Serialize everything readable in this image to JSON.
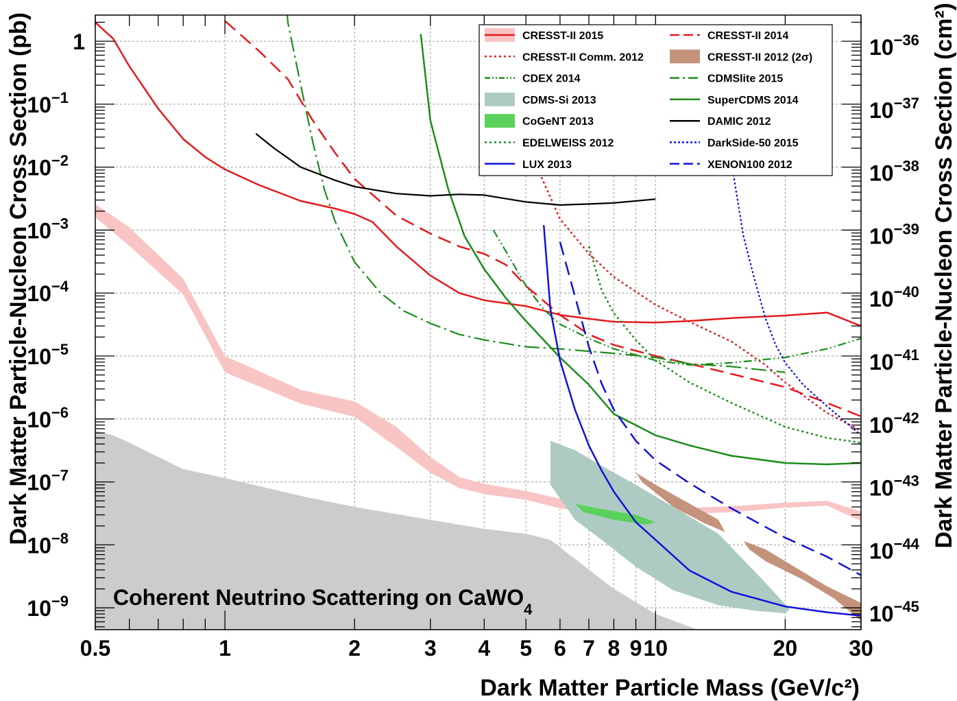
{
  "chart_data": {
    "type": "line",
    "xlabel": "Dark Matter Particle Mass (GeV/c²)",
    "ylabel_left": "Dark Matter Particle-Nucleon Cross Section (pb)",
    "ylabel_right": "Dark Matter Particle-Nucleon Cross Section (cm²)",
    "x_scale": "log",
    "y_scale": "log",
    "xlim": [
      0.5,
      30
    ],
    "ylim_pb": [
      4.5e-10,
      2.6
    ],
    "right_axis_factor": 1e-36,
    "grid": true,
    "legend_position": "top-right",
    "x_ticks": [
      {
        "value": 0.5,
        "label": "0.5"
      },
      {
        "value": 1,
        "label": "1"
      },
      {
        "value": 2,
        "label": "2"
      },
      {
        "value": 3,
        "label": "3"
      },
      {
        "value": 4,
        "label": "4"
      },
      {
        "value": 5,
        "label": "5"
      },
      {
        "value": 6,
        "label": "6"
      },
      {
        "value": 7,
        "label": "7"
      },
      {
        "value": 8,
        "label": "8"
      },
      {
        "value": 9,
        "label": "9"
      },
      {
        "value": 10,
        "label": "10"
      },
      {
        "value": 20,
        "label": "20"
      },
      {
        "value": 30,
        "label": "30"
      }
    ],
    "y_ticks_left": [
      {
        "value": 1,
        "base": "1",
        "exp": ""
      },
      {
        "value": 0.1,
        "base": "10",
        "exp": "−1"
      },
      {
        "value": 0.01,
        "base": "10",
        "exp": "−2"
      },
      {
        "value": 0.001,
        "base": "10",
        "exp": "−3"
      },
      {
        "value": 0.0001,
        "base": "10",
        "exp": "−4"
      },
      {
        "value": 1e-05,
        "base": "10",
        "exp": "−5"
      },
      {
        "value": 1e-06,
        "base": "10",
        "exp": "−6"
      },
      {
        "value": 1e-07,
        "base": "10",
        "exp": "−7"
      },
      {
        "value": 1e-08,
        "base": "10",
        "exp": "−8"
      },
      {
        "value": 1e-09,
        "base": "10",
        "exp": "−9"
      }
    ],
    "y_ticks_right": [
      {
        "value_pb": 1,
        "base": "10",
        "exp": "−36"
      },
      {
        "value_pb": 0.1,
        "base": "10",
        "exp": "−37"
      },
      {
        "value_pb": 0.01,
        "base": "10",
        "exp": "−38"
      },
      {
        "value_pb": 0.001,
        "base": "10",
        "exp": "−39"
      },
      {
        "value_pb": 0.0001,
        "base": "10",
        "exp": "−40"
      },
      {
        "value_pb": 1e-05,
        "base": "10",
        "exp": "−41"
      },
      {
        "value_pb": 1e-06,
        "base": "10",
        "exp": "−42"
      },
      {
        "value_pb": 1e-07,
        "base": "10",
        "exp": "−43"
      },
      {
        "value_pb": 1e-08,
        "base": "10",
        "exp": "−44"
      },
      {
        "value_pb": 1e-09,
        "base": "10",
        "exp": "−45"
      }
    ],
    "annotation": {
      "text": "Coherent Neutrino Scattering on CaWO",
      "subscript": "4"
    },
    "neutrino_floor": {
      "color": "#cccccc",
      "x": [
        0.5,
        0.55,
        0.6,
        0.7,
        0.8,
        1.0,
        1.5,
        2.0,
        3.0,
        4.0,
        5.0,
        5.7,
        6.5,
        8.0,
        10.0,
        12.0,
        12.5
      ],
      "y": [
        6.5e-07,
        5.5e-07,
        4.2e-07,
        2.5e-07,
        1.6e-07,
        1.15e-07,
        6e-08,
        4e-08,
        2.5e-08,
        1.8e-08,
        1.5e-08,
        1.2e-08,
        6e-09,
        2e-09,
        8e-10,
        5e-10,
        4.5e-10
      ]
    },
    "bands": [
      {
        "name": "CRESST-II 2015",
        "color": "#f8c4c4",
        "x": [
          0.5,
          0.6,
          0.8,
          1.0,
          1.5,
          2.0,
          2.5,
          3.0,
          3.5,
          4.0,
          5.0,
          6.0,
          8.0,
          10.0,
          15.0,
          20.0,
          25.0,
          30.0
        ],
        "lower": [
          0.0016,
          0.00056,
          9.5e-05,
          5.5e-06,
          1.75e-06,
          1.08e-06,
          3.6e-07,
          1.4e-07,
          8e-08,
          6.4e-08,
          5.2e-08,
          3.8e-08,
          3e-08,
          3e-08,
          3.3e-08,
          3.9e-08,
          4.2e-08,
          2.4e-08
        ],
        "upper": [
          0.0026,
          0.0011,
          0.00017,
          1e-05,
          2.9e-06,
          1.9e-06,
          7.5e-07,
          2.5e-07,
          1.2e-07,
          9.3e-08,
          7.2e-08,
          5.4e-08,
          3.8e-08,
          3.7e-08,
          4.1e-08,
          4.7e-08,
          5e-08,
          3.4e-08
        ]
      },
      {
        "name": "CDMS-Si 2013",
        "color": "#aecbc3",
        "x": [
          5.7,
          6.5,
          7.5,
          9.0,
          11.0,
          14.0,
          18.0,
          20.5,
          20.0,
          17.0,
          14.0,
          11.0,
          9.0,
          7.5,
          6.5,
          5.7
        ],
        "y": [
          4.5e-07,
          3.2e-07,
          1.8e-07,
          9e-08,
          4e-08,
          1.5e-08,
          2.5e-09,
          9.5e-10,
          8.2e-10,
          9e-10,
          1.1e-09,
          1.9e-09,
          4.5e-09,
          1.2e-08,
          2.5e-08,
          9e-08
        ]
      },
      {
        "name": "CoGeNT 2013",
        "color": "#5ad15a",
        "x": [
          6.5,
          7.5,
          9.0,
          10.0,
          9.5,
          8.0,
          6.8
        ],
        "y": [
          4.5e-08,
          3.7e-08,
          3e-08,
          2.3e-08,
          2.1e-08,
          2.5e-08,
          3.3e-08
        ]
      },
      {
        "name": "CRESST-II 2012 (2σ)",
        "color": "#c4937c",
        "x": [
          9.0,
          10.0,
          12.0,
          14.0,
          14.5,
          13.0,
          11.0,
          9.3
        ],
        "y": [
          1.4e-07,
          9e-08,
          4.5e-08,
          2.5e-08,
          1.6e-08,
          2.2e-08,
          4e-08,
          1e-07
        ]
      },
      {
        "name": "CRESST-II 2012 (2σ)",
        "color": "#c4937c",
        "x": [
          16.0,
          18.0,
          21.0,
          25.0,
          30.0,
          30.0,
          26.0,
          22.0,
          18.0,
          16.5
        ],
        "y": [
          1.15e-08,
          8.5e-09,
          4.5e-09,
          2.2e-09,
          1.2e-09,
          6.2e-10,
          1.4e-09,
          2.8e-09,
          5.5e-09,
          8.5e-09
        ]
      }
    ],
    "series": [
      {
        "name": "CRESST-II 2015",
        "color": "#e41a1c",
        "dash": "",
        "width": 2.5,
        "x": [
          0.5,
          0.55,
          0.6,
          0.7,
          0.8,
          0.9,
          1.0,
          1.2,
          1.5,
          1.8,
          2.0,
          2.2,
          2.5,
          3.0,
          3.5,
          4.0,
          5.0,
          6.0,
          7.0,
          8.0,
          10.0,
          12.0,
          15.0,
          20.0,
          25.0,
          30.0
        ],
        "y": [
          2.0,
          1.1,
          0.4,
          0.085,
          0.028,
          0.0145,
          0.0092,
          0.0052,
          0.0029,
          0.0022,
          0.0018,
          0.00135,
          0.00055,
          0.00019,
          0.0001,
          7.7e-05,
          6.2e-05,
          4.5e-05,
          3.9e-05,
          3.5e-05,
          3.4e-05,
          3.6e-05,
          4e-05,
          4.4e-05,
          4.9e-05,
          3e-05
        ]
      },
      {
        "name": "CRESST-II 2014",
        "color": "#e41a1c",
        "dash": "20,10",
        "width": 2.5,
        "x": [
          1.0,
          1.2,
          1.4,
          1.6,
          1.8,
          2.0,
          2.5,
          3.0,
          3.5,
          4.0,
          4.5,
          5.0,
          6.0,
          7.0,
          8.0,
          10.0,
          12.0,
          15.0,
          20.0,
          25.0,
          30.0
        ],
        "y": [
          2.1,
          0.7,
          0.25,
          0.055,
          0.017,
          0.0065,
          0.0017,
          0.00088,
          0.00055,
          0.00042,
          0.00028,
          0.00013,
          4.5e-05,
          2.2e-05,
          1.5e-05,
          1e-05,
          7.5e-06,
          5.2e-06,
          3.2e-06,
          1.8e-06,
          1.1e-06
        ]
      },
      {
        "name": "CRESST-II Comm. 2012",
        "color": "#e41a1c",
        "dash": "3,4",
        "width": 2.5,
        "x": [
          4.5,
          5.0,
          6.0,
          7.0,
          8.0,
          10.0,
          12.0,
          15.0,
          18.0,
          20.0,
          25.0,
          30.0
        ],
        "y": [
          0.15,
          0.025,
          0.0015,
          0.00042,
          0.00018,
          6.5e-05,
          3.5e-05,
          1.7e-05,
          7.2e-06,
          3.8e-06,
          1.25e-06,
          6.5e-07
        ]
      },
      {
        "name": "CDEX 2014",
        "color": "#1b8c1b",
        "dash": "12,4,2,4,2,4",
        "width": 2.2,
        "x": [
          4.2,
          4.6,
          5.0,
          5.5,
          6.0,
          7.0,
          8.0,
          10.0,
          12.0,
          15.0,
          20.0,
          25.0,
          30.0
        ],
        "y": [
          0.001,
          0.00035,
          0.00013,
          5.5e-05,
          3.2e-05,
          1.9e-05,
          1.3e-05,
          8.5e-06,
          7.2e-06,
          7.8e-06,
          9.5e-06,
          1.3e-05,
          1.9e-05
        ]
      },
      {
        "name": "CDMSlite 2015",
        "color": "#1b8c1b",
        "dash": "22,6,3,6",
        "width": 2.2,
        "x": [
          1.32,
          1.4,
          1.5,
          1.6,
          1.7,
          1.8,
          2.0,
          2.3,
          2.6,
          3.0,
          3.5,
          4.0,
          5.0,
          6.0,
          8.0,
          10.0,
          12.0,
          15.0,
          20.0
        ],
        "y": [
          300,
          2.0,
          0.2,
          0.025,
          0.0045,
          0.0014,
          0.00031,
          0.0001,
          5.2e-05,
          3.3e-05,
          2.2e-05,
          1.8e-05,
          1.4e-05,
          1.3e-05,
          1.1e-05,
          9.5e-06,
          7.5e-06,
          6.8e-06,
          5.5e-06
        ]
      },
      {
        "name": "EDELWEISS 2012",
        "color": "#1b8c1b",
        "dash": "3,4",
        "width": 2.5,
        "x": [
          7.0,
          7.5,
          8.0,
          9.0,
          10.0,
          12.0,
          15.0,
          20.0,
          25.0,
          30.0
        ],
        "y": [
          0.00055,
          0.00011,
          4.8e-05,
          1.8e-05,
          8.5e-06,
          3.8e-06,
          1.8e-06,
          7.5e-07,
          5e-07,
          4.2e-07
        ]
      },
      {
        "name": "SuperCDMS 2014",
        "color": "#1b8c1b",
        "dash": "",
        "width": 2.5,
        "x": [
          2.85,
          3.0,
          3.3,
          3.6,
          4.0,
          4.5,
          5.0,
          6.0,
          7.0,
          8.0,
          10.0,
          12.0,
          15.0,
          20.0,
          25.0,
          30.0
        ],
        "y": [
          1.3,
          0.055,
          0.0045,
          0.0008,
          0.00024,
          8.2e-05,
          3.6e-05,
          9.5e-06,
          3.5e-06,
          1.2e-06,
          5.5e-07,
          3.8e-07,
          2.6e-07,
          2e-07,
          1.9e-07,
          2e-07
        ]
      },
      {
        "name": "DAMIC 2012",
        "color": "#000000",
        "dash": "",
        "width": 2.2,
        "x": [
          1.18,
          1.3,
          1.5,
          1.8,
          2.0,
          2.5,
          3.0,
          3.5,
          4.0,
          5.0,
          6.0,
          7.0,
          8.0,
          10.0
        ],
        "y": [
          0.034,
          0.02,
          0.01,
          0.0062,
          0.0049,
          0.0038,
          0.0035,
          0.0037,
          0.0036,
          0.0028,
          0.0025,
          0.0026,
          0.0027,
          0.0031
        ]
      },
      {
        "name": "LUX 2013",
        "color": "#1111dd",
        "dash": "",
        "width": 2.5,
        "x": [
          5.5,
          5.7,
          6.0,
          6.5,
          7.0,
          7.5,
          8.0,
          9.0,
          10.0,
          12.0,
          15.0,
          20.0,
          25.0,
          30.0
        ],
        "y": [
          0.0012,
          5.5e-05,
          8.5e-06,
          1.4e-06,
          3.8e-07,
          1.5e-07,
          7e-08,
          2.3e-08,
          1.2e-08,
          3.9e-09,
          1.8e-09,
          1.05e-09,
          8.5e-10,
          7.5e-10
        ]
      },
      {
        "name": "DarkSide-50 2015",
        "color": "#1111dd",
        "dash": "3,3",
        "width": 2.2,
        "x": [
          15.0,
          16.0,
          17.0,
          18.0,
          19.0,
          20.0,
          22.0,
          25.0,
          30.0
        ],
        "y": [
          0.012,
          0.0008,
          0.00016,
          4e-05,
          1.5e-05,
          7.8e-06,
          3.5e-06,
          1.6e-06,
          5.5e-07
        ]
      },
      {
        "name": "XENON100 2012",
        "color": "#1111dd",
        "dash": "20,10",
        "width": 2.5,
        "x": [
          6.0,
          6.5,
          7.0,
          7.5,
          8.0,
          9.0,
          10.0,
          12.0,
          15.0,
          20.0,
          25.0,
          30.0
        ],
        "y": [
          0.00065,
          8.8e-05,
          1.4e-05,
          3.6e-06,
          1.4e-06,
          4.5e-07,
          2.2e-07,
          9.5e-08,
          3.8e-08,
          1.3e-08,
          6.5e-09,
          3.3e-09
        ]
      }
    ],
    "legend": [
      {
        "label": "CRESST-II 2015",
        "kind": "band-line",
        "color": "#e41a1c",
        "fill": "#f8c4c4",
        "dash": ""
      },
      {
        "label": "CRESST-II 2014",
        "kind": "line",
        "color": "#e41a1c",
        "dash": "14,6"
      },
      {
        "label": "CRESST-II Comm. 2012",
        "kind": "line",
        "color": "#e41a1c",
        "dash": "3,4"
      },
      {
        "label": "CRESST-II 2012 (2σ)",
        "kind": "box",
        "color": "#c4937c"
      },
      {
        "label": "CDEX 2014",
        "kind": "line",
        "color": "#1b8c1b",
        "dash": "8,3,2,3,2,3"
      },
      {
        "label": "CDMSlite 2015",
        "kind": "line",
        "color": "#1b8c1b",
        "dash": "14,5,3,5"
      },
      {
        "label": "CDMS-Si 2013",
        "kind": "box",
        "color": "#aecbc3"
      },
      {
        "label": "SuperCDMS 2014",
        "kind": "line",
        "color": "#1b8c1b",
        "dash": ""
      },
      {
        "label": "CoGeNT 2013",
        "kind": "box",
        "color": "#5ad15a"
      },
      {
        "label": "DAMIC 2012",
        "kind": "line",
        "color": "#000000",
        "dash": ""
      },
      {
        "label": "EDELWEISS 2012",
        "kind": "line",
        "color": "#1b8c1b",
        "dash": "3,4"
      },
      {
        "label": "DarkSide-50 2015",
        "kind": "line",
        "color": "#1111dd",
        "dash": "3,3"
      },
      {
        "label": "LUX 2013",
        "kind": "line",
        "color": "#1111dd",
        "dash": ""
      },
      {
        "label": "XENON100 2012",
        "kind": "line",
        "color": "#1111dd",
        "dash": "14,6"
      }
    ]
  }
}
